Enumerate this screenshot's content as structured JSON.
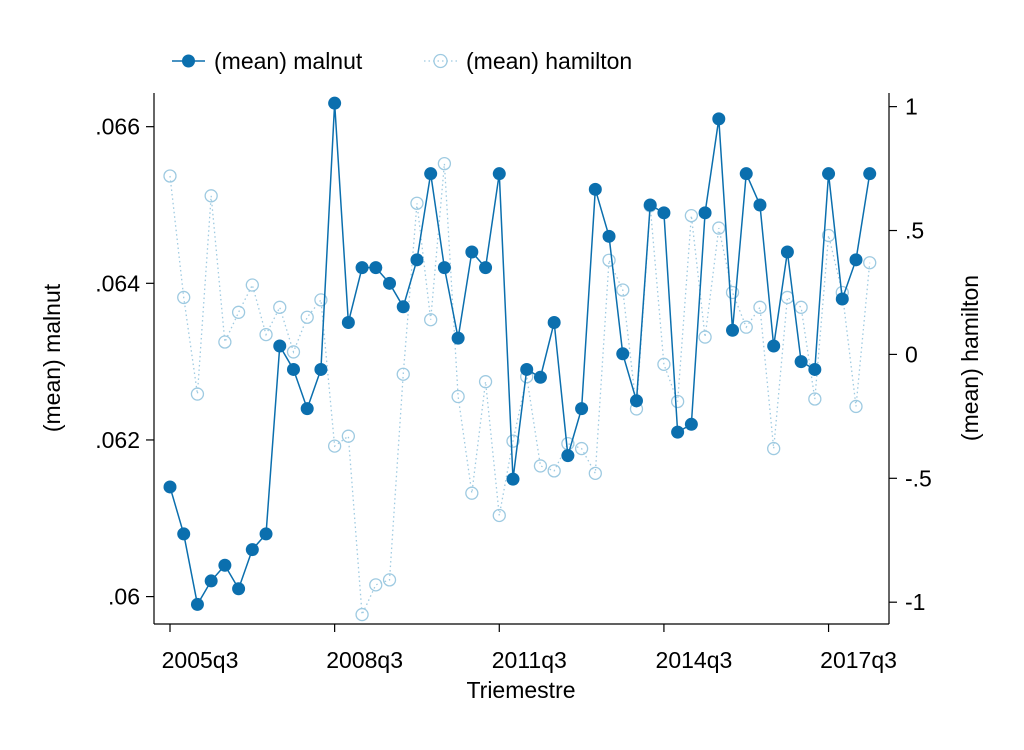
{
  "chart_data": {
    "type": "line",
    "xlabel": "Triemestre",
    "ylabel_left": "(mean) malnut",
    "ylabel_right": "(mean) hamilton",
    "x_start": "2005q3",
    "x_tick_labels": [
      "2005q3",
      "2008q3",
      "2011q3",
      "2014q3",
      "2017q3"
    ],
    "x_tick_index": [
      0,
      12,
      24,
      36,
      48
    ],
    "y_left_ticks": [
      ".06",
      ".062",
      ".064",
      ".066"
    ],
    "y_left_tick_values": [
      0.06,
      0.062,
      0.064,
      0.066
    ],
    "y_left_range": [
      0.05965,
      0.06643
    ],
    "y_right_ticks": [
      "-1",
      "-.5",
      "0",
      ".5",
      "1"
    ],
    "y_right_tick_values": [
      -1,
      -0.5,
      0,
      0.5,
      1
    ],
    "y_right_range": [
      -1.088,
      1.055
    ],
    "legend_position": "top-left",
    "grid": false,
    "series": [
      {
        "name": "(mean) malnut",
        "axis": "left",
        "color": "#0b6fae",
        "marker": "filled-circle",
        "line": "solid",
        "values": [
          0.0614,
          0.0608,
          0.0599,
          0.0602,
          0.0604,
          0.0601,
          0.0606,
          0.0608,
          0.0632,
          0.0629,
          0.0624,
          0.0629,
          0.0663,
          0.0635,
          0.0642,
          0.0642,
          0.064,
          0.0637,
          0.0643,
          0.0654,
          0.0642,
          0.0633,
          0.0644,
          0.0642,
          0.0654,
          0.0615,
          0.0629,
          0.0628,
          0.0635,
          0.0618,
          0.0624,
          0.0652,
          0.0646,
          0.0631,
          0.0625,
          0.065,
          0.0649,
          0.0621,
          0.0622,
          0.0649,
          0.0661,
          0.0634,
          0.0654,
          0.065,
          0.0632,
          0.0644,
          0.063,
          0.0629,
          0.0654,
          0.0638,
          0.0643,
          0.0654
        ]
      },
      {
        "name": "(mean) hamilton",
        "axis": "right",
        "color": "#9ecae1",
        "marker": "hollow-circle",
        "line": "dotted",
        "values": [
          0.72,
          0.23,
          -0.16,
          0.64,
          0.05,
          0.17,
          0.28,
          0.08,
          0.19,
          0.01,
          0.15,
          0.22,
          -0.37,
          -0.33,
          -1.05,
          -0.93,
          -0.91,
          -0.08,
          0.61,
          0.14,
          0.77,
          -0.17,
          -0.56,
          -0.11,
          -0.65,
          -0.35,
          -0.09,
          -0.45,
          -0.47,
          -0.36,
          -0.38,
          -0.48,
          0.38,
          0.26,
          -0.22,
          0.6,
          -0.04,
          -0.19,
          0.56,
          0.07,
          0.51,
          0.25,
          0.11,
          0.19,
          -0.38,
          0.23,
          0.19,
          -0.18,
          0.48,
          0.25,
          -0.21,
          0.37
        ]
      }
    ]
  }
}
